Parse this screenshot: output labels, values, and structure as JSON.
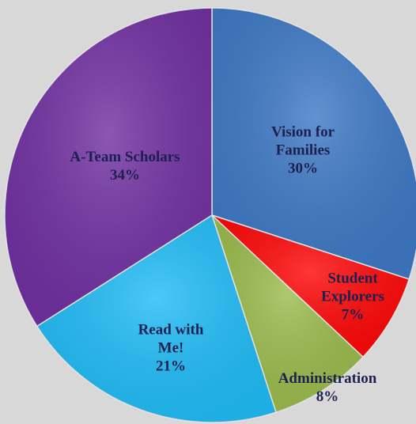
{
  "chart_data": {
    "type": "pie",
    "categories": [
      "Vision for Families",
      "Student Explorers",
      "Administration",
      "Read with Me!",
      "A-Team Scholars"
    ],
    "values": [
      30,
      7,
      8,
      21,
      34
    ],
    "value_labels": [
      "30%",
      "7%",
      "8%",
      "21%",
      "34%"
    ],
    "colors": [
      "#3f7ac6",
      "#ff0a0a",
      "#9cbc4e",
      "#22bdf7",
      "#7232a3"
    ]
  }
}
